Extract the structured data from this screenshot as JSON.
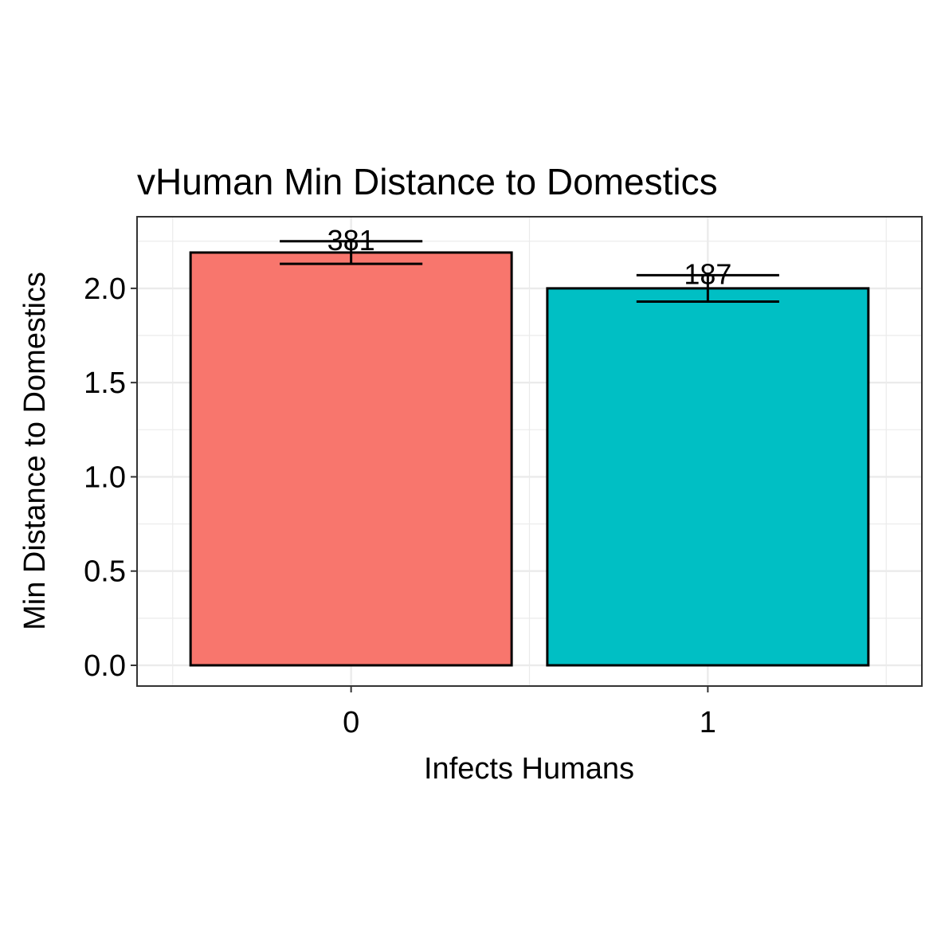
{
  "chart_data": {
    "type": "bar",
    "title": "vHuman Min Distance to Domestics",
    "xlabel": "Infects Humans",
    "ylabel": "Min Distance to Domestics",
    "categories": [
      "0",
      "1"
    ],
    "values": [
      2.19,
      2.0
    ],
    "error_bars": [
      {
        "low": 2.13,
        "high": 2.25
      },
      {
        "low": 1.93,
        "high": 2.07
      }
    ],
    "data_labels": [
      "381",
      "187"
    ],
    "colors": [
      "#F8766D",
      "#00BFC4"
    ],
    "ylim": [
      -0.11,
      2.38
    ],
    "y_ticks": [
      0.0,
      0.5,
      1.0,
      1.5,
      2.0
    ],
    "y_tick_labels": [
      "0.0",
      "0.5",
      "1.0",
      "1.5",
      "2.0"
    ],
    "y_minor_ticks": [
      0.25,
      0.75,
      1.25,
      1.75,
      2.25
    ],
    "grid": true,
    "legend": "none"
  }
}
